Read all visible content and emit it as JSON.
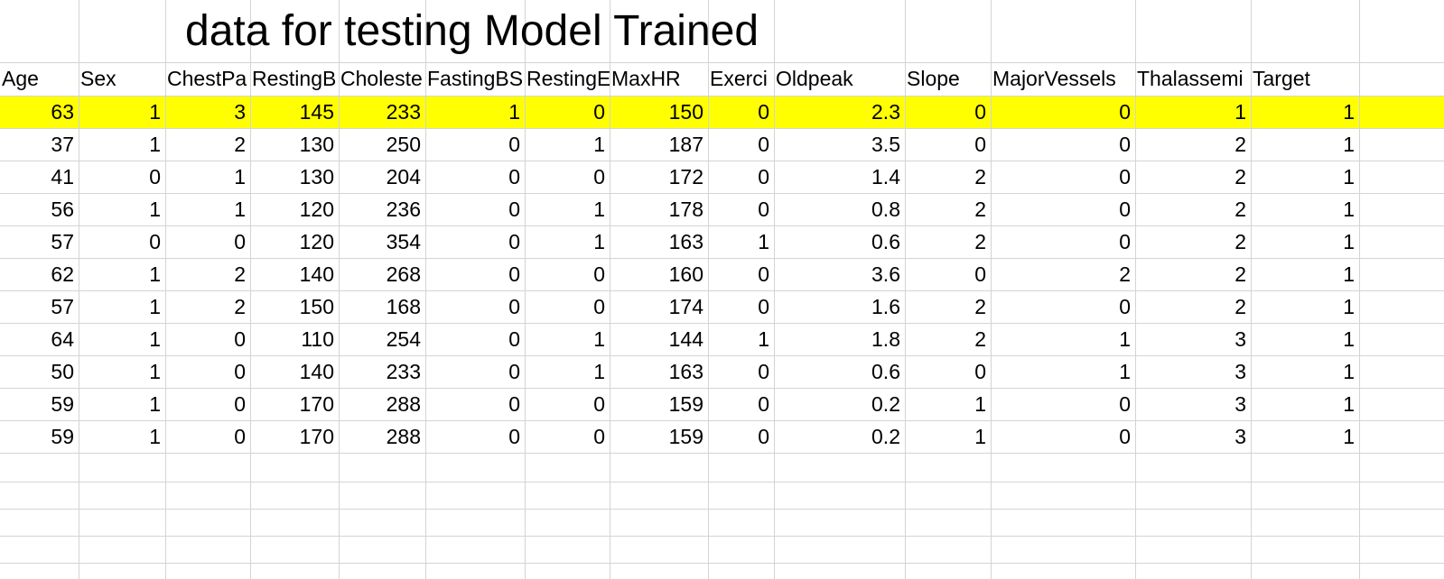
{
  "title": "data for testing Model Trained",
  "columns": [
    "Age",
    "Sex",
    "ChestPa",
    "RestingB",
    "Choleste",
    "FastingBS",
    "RestingE",
    "MaxHR",
    "Exerci",
    "Oldpeak",
    "Slope",
    "MajorVessels",
    "Thalassemi",
    "Target"
  ],
  "highlight_color": "#ffff00",
  "rows": [
    [
      "63",
      "1",
      "3",
      "145",
      "233",
      "1",
      "0",
      "150",
      "0",
      "2.3",
      "0",
      "0",
      "1",
      "1"
    ],
    [
      "37",
      "1",
      "2",
      "130",
      "250",
      "0",
      "1",
      "187",
      "0",
      "3.5",
      "0",
      "0",
      "2",
      "1"
    ],
    [
      "41",
      "0",
      "1",
      "130",
      "204",
      "0",
      "0",
      "172",
      "0",
      "1.4",
      "2",
      "0",
      "2",
      "1"
    ],
    [
      "56",
      "1",
      "1",
      "120",
      "236",
      "0",
      "1",
      "178",
      "0",
      "0.8",
      "2",
      "0",
      "2",
      "1"
    ],
    [
      "57",
      "0",
      "0",
      "120",
      "354",
      "0",
      "1",
      "163",
      "1",
      "0.6",
      "2",
      "0",
      "2",
      "1"
    ],
    [
      "62",
      "1",
      "2",
      "140",
      "268",
      "0",
      "0",
      "160",
      "0",
      "3.6",
      "0",
      "2",
      "2",
      "1"
    ],
    [
      "57",
      "1",
      "2",
      "150",
      "168",
      "0",
      "0",
      "174",
      "0",
      "1.6",
      "2",
      "0",
      "2",
      "1"
    ],
    [
      "64",
      "1",
      "0",
      "110",
      "254",
      "0",
      "1",
      "144",
      "1",
      "1.8",
      "2",
      "1",
      "3",
      "1"
    ],
    [
      "50",
      "1",
      "0",
      "140",
      "233",
      "0",
      "1",
      "163",
      "0",
      "0.6",
      "0",
      "1",
      "3",
      "1"
    ],
    [
      "59",
      "1",
      "0",
      "170",
      "288",
      "0",
      "0",
      "159",
      "0",
      "0.2",
      "1",
      "0",
      "3",
      "1"
    ],
    [
      "59",
      "1",
      "0",
      "170",
      "288",
      "0",
      "0",
      "159",
      "0",
      "0.2",
      "1",
      "0",
      "3",
      "1"
    ]
  ]
}
